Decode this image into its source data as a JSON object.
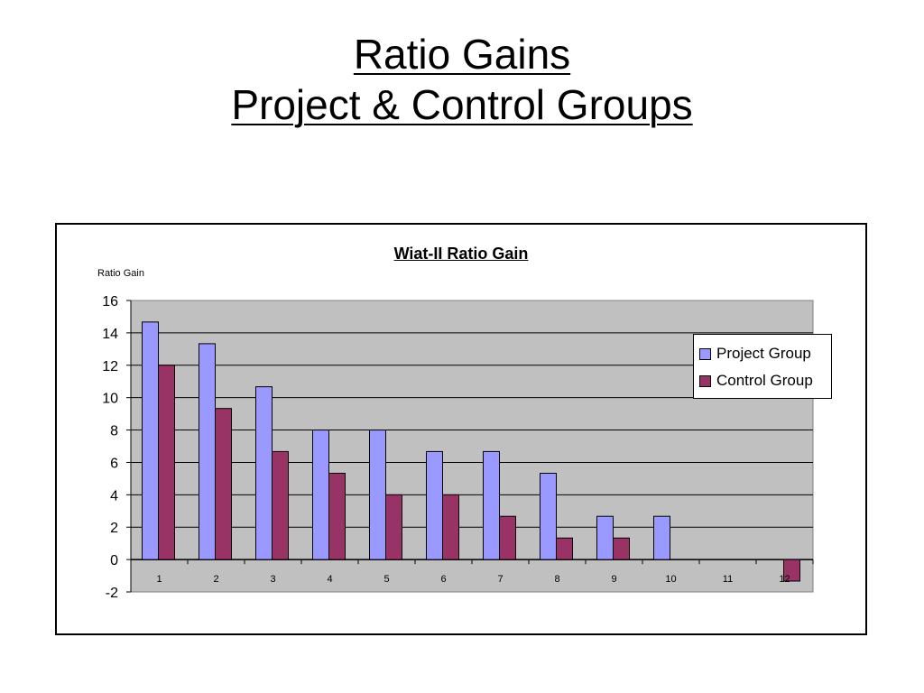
{
  "slide": {
    "title_line1": "Ratio Gains",
    "title_line2": "Project & Control Groups"
  },
  "chart_data": {
    "type": "bar",
    "title": "Wiat-II Ratio Gain",
    "ylabel": "Ratio Gain",
    "xlabel": "",
    "categories": [
      "1",
      "2",
      "3",
      "4",
      "5",
      "6",
      "7",
      "8",
      "9",
      "10",
      "11",
      "12"
    ],
    "series": [
      {
        "name": "Project Group",
        "color": "#9999ff",
        "values": [
          14.67,
          13.33,
          10.67,
          8,
          8,
          6.67,
          6.67,
          5.33,
          2.67,
          2.67,
          0,
          0
        ]
      },
      {
        "name": "Control Group",
        "color": "#993366",
        "values": [
          12,
          9.33,
          6.67,
          5.33,
          4,
          4,
          2.67,
          1.33,
          1.33,
          0,
          0,
          -1.33
        ]
      }
    ],
    "ylim": [
      -2,
      16
    ],
    "yticks": [
      -2,
      0,
      2,
      4,
      6,
      8,
      10,
      12,
      14,
      16
    ],
    "plot_background": "#c0c0c0",
    "grid": true,
    "legend_position": "right"
  }
}
